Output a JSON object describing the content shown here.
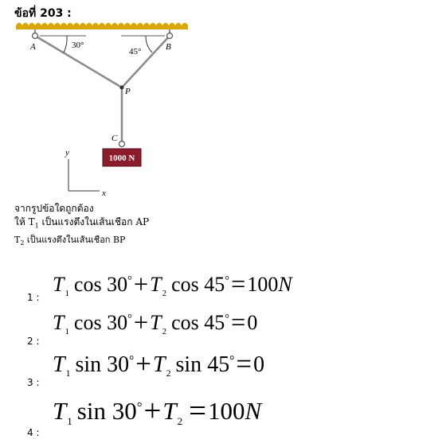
{
  "question": {
    "label": "ข้อที่ 203 :"
  },
  "figure": {
    "point_a": "A",
    "point_b": "B",
    "point_p": "P",
    "point_c": "C",
    "angle_a": "30°",
    "angle_b": "45°",
    "weight": "1000 N",
    "axis_y": "y",
    "axis_x": "x"
  },
  "prompt": {
    "line1": "จากรูปข้อใดถูกต้อง",
    "line2_prefix": "ให้ T",
    "line2_sub": "1",
    "line2_text": " เป็นแรงตึงในเส้นเชือก AP",
    "line3_prefix": "T",
    "line3_sub": "2",
    "line3_text": " เป็นแรงตึงในเส้นเชือก BP"
  },
  "choices": [
    {
      "number": "1 :",
      "t1": "T",
      "t1_sub": "1",
      "f1": "cos",
      "a1": "30",
      "deg1": "°",
      "plus": "+",
      "t2": "T",
      "t2_sub": "2",
      "f2": "cos",
      "a2": "45",
      "deg2": "°",
      "eq": "=",
      "rhs": "100",
      "unit": "N"
    },
    {
      "number": "2 :",
      "t1": "T",
      "t1_sub": "1",
      "f1": "cos",
      "a1": "30",
      "deg1": "°",
      "plus": "+",
      "t2": "T",
      "t2_sub": "2",
      "f2": "cos",
      "a2": "45",
      "deg2": "°",
      "eq": "=",
      "rhs": "0",
      "unit": ""
    },
    {
      "number": "3 :",
      "t1": "T",
      "t1_sub": "1",
      "f1": "sin",
      "a1": "30",
      "deg1": "°",
      "plus": "+",
      "t2": "T",
      "t2_sub": "2",
      "f2": "sin",
      "a2": "45",
      "deg2": "°",
      "eq": "=",
      "rhs": "0",
      "unit": ""
    },
    {
      "number": "4 :",
      "t1": "T",
      "t1_sub": "1",
      "f1": "sin",
      "a1": "30",
      "deg1": "°",
      "plus": "+",
      "t2": "T",
      "t2_sub": "2",
      "f2": "",
      "a2": "",
      "deg2": "",
      "eq": "=",
      "rhs": "100",
      "unit": "N"
    }
  ],
  "colors": {
    "ceiling": "#d8a800",
    "rope": "#8a8a8a",
    "weight_box": "#8b1c2b"
  }
}
